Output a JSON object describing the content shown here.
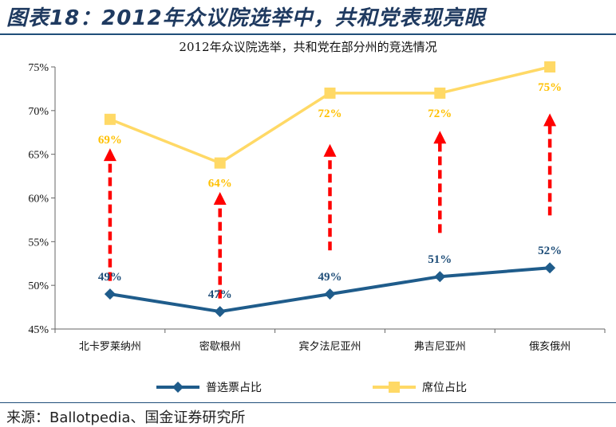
{
  "figure_title": "图表18：2012年众议院选举中，共和党表现亮眼",
  "source": "来源：Ballotpedia、国金证券研究所",
  "chart_data": {
    "type": "line",
    "title": "2012年众议院选举，共和党在部分州的竞选情况",
    "categories": [
      "北卡罗莱纳州",
      "密歇根州",
      "宾夕法尼亚州",
      "弗吉尼亚州",
      "俄亥俄州"
    ],
    "ylim": [
      45,
      75
    ],
    "yticks": [
      "45%",
      "50%",
      "55%",
      "60%",
      "65%",
      "70%",
      "75%"
    ],
    "ytick_values": [
      45,
      50,
      55,
      60,
      65,
      70,
      75
    ],
    "series": [
      {
        "name": "普选票占比",
        "values": [
          49,
          47,
          49,
          51,
          52
        ],
        "labels": [
          "49%",
          "47%",
          "49%",
          "51%",
          "52%"
        ],
        "color": "#1f5c8b",
        "marker": "diamond"
      },
      {
        "name": "席位占比",
        "values": [
          69,
          64,
          72,
          72,
          75
        ],
        "labels": [
          "69%",
          "64%",
          "72%",
          "72%",
          "75%"
        ],
        "color": "#ffd966",
        "marker": "square"
      }
    ],
    "arrows": [
      {
        "from": 50.5,
        "to": 65.5
      },
      {
        "from": 48.5,
        "to": 60.5
      },
      {
        "from": 54,
        "to": 66
      },
      {
        "from": 56,
        "to": 67.5
      },
      {
        "from": 58,
        "to": 69.5
      }
    ],
    "arrow_color": "#ff0000",
    "grid": false,
    "legend_position": "bottom"
  }
}
